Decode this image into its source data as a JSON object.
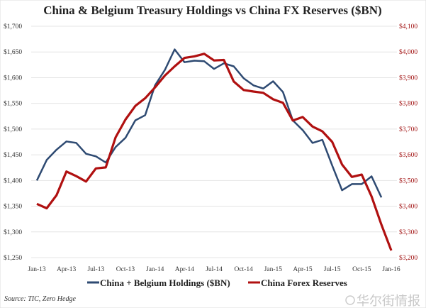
{
  "chart_data": {
    "type": "line",
    "title": "China & Belgium Treasury Holdings vs China FX Reserves ($BN)",
    "x_tick_labels": [
      "Jan-13",
      "Apr-13",
      "Jul-13",
      "Oct-13",
      "Jan-14",
      "Apr-14",
      "Jul-14",
      "Oct-14",
      "Jan-15",
      "Apr-15",
      "Jul-15",
      "Oct-15",
      "Jan-16"
    ],
    "left_axis": {
      "range": [
        1250,
        1700
      ],
      "ticks": [
        "$1,250",
        "$1,300",
        "$1,350",
        "$1,400",
        "$1,450",
        "$1,500",
        "$1,550",
        "$1,600",
        "$1,650",
        "$1,700"
      ]
    },
    "right_axis": {
      "range": [
        3200,
        4100
      ],
      "ticks": [
        "$3,200",
        "$3,300",
        "$3,400",
        "$3,500",
        "$3,600",
        "$3,700",
        "$3,800",
        "$3,900",
        "$4,000",
        "$4,100"
      ]
    },
    "grid": "horizontal",
    "legend_position": "bottom",
    "series": [
      {
        "name": "China + Belgium Holdings ($BN)",
        "color": "#2e4a72",
        "axis": "left",
        "start": "Jan-13",
        "values": [
          1400,
          1440,
          1460,
          1476,
          1473,
          1452,
          1447,
          1435,
          1465,
          1483,
          1517,
          1527,
          1585,
          1615,
          1655,
          1630,
          1633,
          1632,
          1617,
          1628,
          1622,
          1599,
          1585,
          1579,
          1593,
          1572,
          1517,
          1498,
          1473,
          1479,
          1429,
          1381,
          1393,
          1393,
          1408,
          1367
        ]
      },
      {
        "name": "China Forex Reserves",
        "color": "#b01010",
        "axis": "right",
        "start": "Jan-13",
        "values": [
          3409,
          3392,
          3443,
          3535,
          3517,
          3496,
          3547,
          3551,
          3668,
          3737,
          3790,
          3820,
          3862,
          3908,
          3944,
          3977,
          3983,
          3993,
          3967,
          3969,
          3885,
          3852,
          3846,
          3841,
          3816,
          3802,
          3733,
          3747,
          3710,
          3691,
          3650,
          3562,
          3514,
          3523,
          3438,
          3328,
          3228
        ]
      }
    ],
    "source": "Source: TIC, Zero Hedge"
  },
  "watermark": "华尔街情报"
}
